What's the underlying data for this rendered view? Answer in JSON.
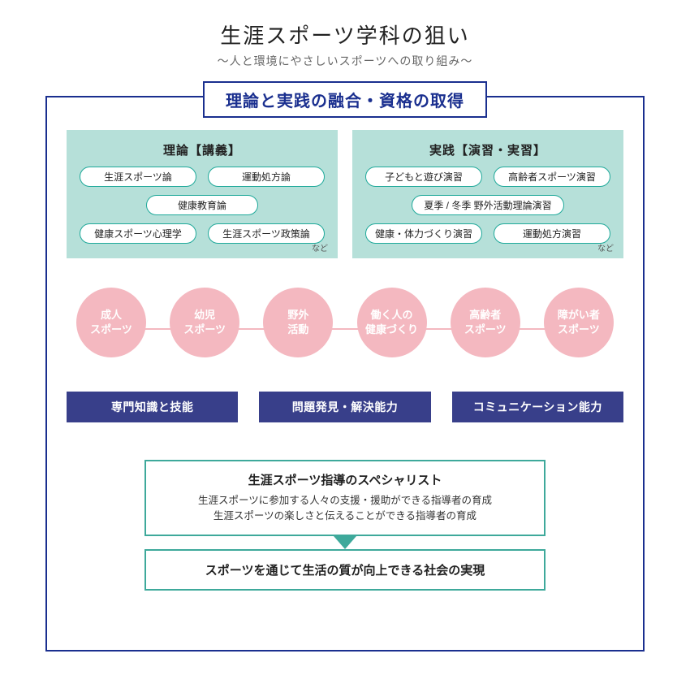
{
  "title": "生涯スポーツ学科の狙い",
  "subtitle": "～人と環境にやさしいスポーツへの取り組み～",
  "headerBar": "理論と実践の融合・資格の取得",
  "colors": {
    "frameBorder": "#1a2f8f",
    "panelBg": "#b6e0d9",
    "pillBorder": "#1fa99a",
    "circleBg": "#f4b8c0",
    "skillBarBg": "#383f8a",
    "outcomeBorder": "#3ea99b",
    "pageBg": "#ffffff"
  },
  "panels": {
    "left": {
      "title": "理論【講義】",
      "row1": [
        "生涯スポーツ論",
        "運動処方論"
      ],
      "row2": [
        "健康教育論"
      ],
      "row3": [
        "健康スポーツ心理学",
        "生涯スポーツ政策論"
      ],
      "note": "など"
    },
    "right": {
      "title": "実践【演習・実習】",
      "row1": [
        "子どもと遊び演習",
        "高齢者スポーツ演習"
      ],
      "row2": [
        "夏季 / 冬季 野外活動理論演習"
      ],
      "row3": [
        "健康・体力づくり演習",
        "運動処方演習"
      ],
      "note": "など"
    }
  },
  "circles": [
    "成人\nスポーツ",
    "幼児\nスポーツ",
    "野外\n活動",
    "働く人の\n健康づくり",
    "高齢者\nスポーツ",
    "障がい者\nスポーツ"
  ],
  "skillBars": [
    "専門知識と技能",
    "問題発見・解決能力",
    "コミュニケーション能力"
  ],
  "outcome": {
    "title": "生涯スポーツ指導のスペシャリスト",
    "line1": "生涯スポーツに参加する人々の支援・援助ができる指導者の育成",
    "line2": "生涯スポーツの楽しさと伝えることができる指導者の育成"
  },
  "final": "スポーツを通じて生活の質が向上できる社会の実現"
}
